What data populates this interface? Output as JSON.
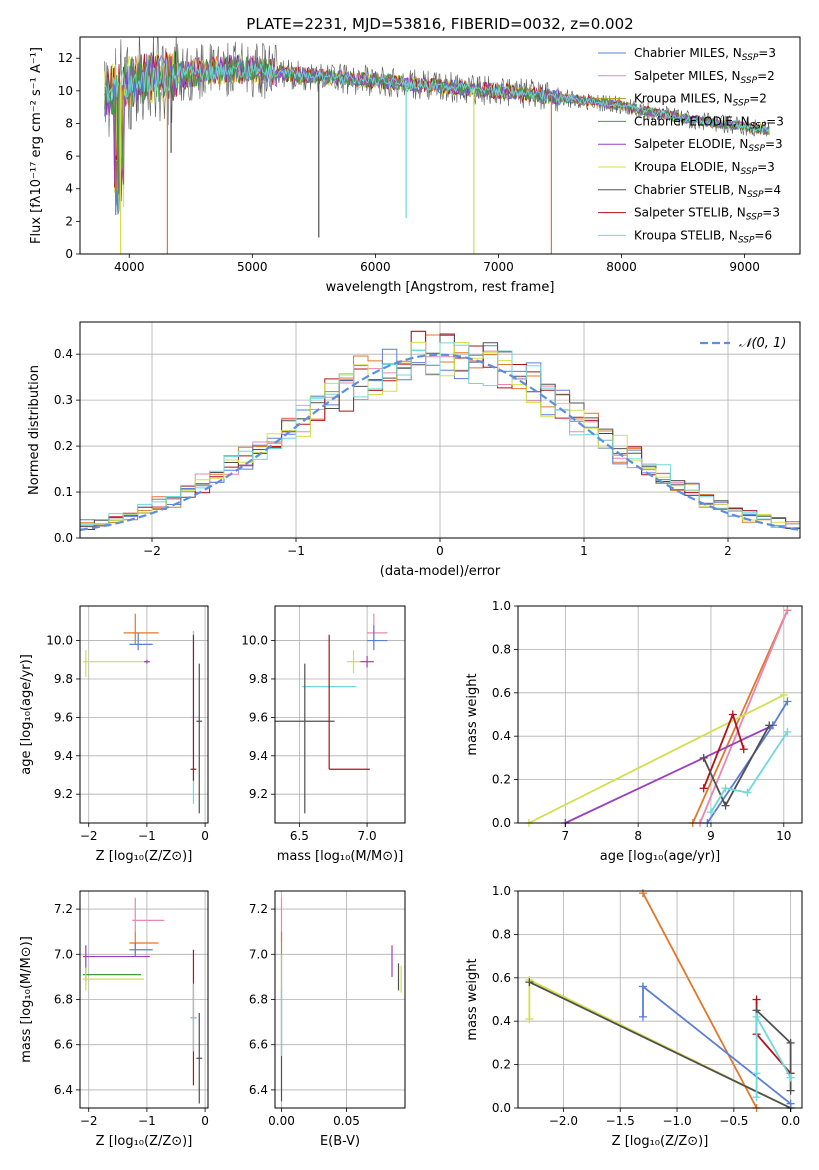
{
  "figure": {
    "title": "PLATE=2231, MJD=53816, FIBERID=0032, z=0.002"
  },
  "colors": {
    "chabrier_miles": "#5b7fd6",
    "salpeter_miles": "#ea86b3",
    "kroupa_miles": "#a6a021",
    "chabrier_elodie": "#3f9a3f",
    "salpeter_elodie": "#9a3fbf",
    "kroupa_elodie": "#d0e04a",
    "chabrier_stelib": "#505050",
    "salpeter_stelib": "#b3121b",
    "kroupa_stelib": "#6fd8d8",
    "orange": "#e0782a",
    "normal_curve": "#5b8fe0",
    "grid": "#b0b0b0"
  },
  "chart_data": [
    {
      "id": "spectrum",
      "type": "line",
      "xlabel": "wavelength [Angstrom, rest frame]",
      "ylabel": "Flux [fλ10⁻¹⁷ erg cm⁻² s⁻¹ A⁻¹]",
      "xlim": [
        3600,
        9450
      ],
      "ylim": [
        0,
        13.3
      ],
      "xticks": [
        4000,
        5000,
        6000,
        7000,
        8000,
        9000
      ],
      "yticks": [
        0,
        2,
        4,
        6,
        8,
        10,
        12
      ],
      "grid": false,
      "legend_position": "top-right",
      "legend": [
        {
          "label": "Chabrier MILES, N",
          "sub": "SSP",
          "n": "=3",
          "color": "chabrier_miles"
        },
        {
          "label": "Salpeter MILES, N",
          "sub": "SSP",
          "n": "=2",
          "color": "salpeter_miles"
        },
        {
          "label": "Kroupa MILES, N",
          "sub": "SSP",
          "n": "=2",
          "color": "kroupa_miles"
        },
        {
          "label": "Chabrier ELODIE, N",
          "sub": "SSP",
          "n": "=3",
          "color": "chabrier_elodie"
        },
        {
          "label": "Salpeter ELODIE, N",
          "sub": "SSP",
          "n": "=3",
          "color": "salpeter_elodie"
        },
        {
          "label": "Kroupa ELODIE, N",
          "sub": "SSP",
          "n": "=3",
          "color": "kroupa_elodie"
        },
        {
          "label": "Chabrier STELIB, N",
          "sub": "SSP",
          "n": "=4",
          "color": "chabrier_stelib"
        },
        {
          "label": "Salpeter STELIB, N",
          "sub": "SSP",
          "n": "=3",
          "color": "salpeter_stelib"
        },
        {
          "label": "Kroupa STELIB, N",
          "sub": "SSP",
          "n": "=6",
          "color": "kroupa_stelib"
        }
      ],
      "continuum": [
        [
          3800,
          9.6
        ],
        [
          3900,
          10.3
        ],
        [
          4000,
          10.6
        ],
        [
          4200,
          10.8
        ],
        [
          4400,
          11.0
        ],
        [
          4600,
          11.2
        ],
        [
          4800,
          11.3
        ],
        [
          5000,
          11.3
        ],
        [
          5200,
          11.1
        ],
        [
          5500,
          10.9
        ],
        [
          6000,
          10.6
        ],
        [
          6500,
          10.3
        ],
        [
          7000,
          10.0
        ],
        [
          7500,
          9.6
        ],
        [
          8000,
          9.1
        ],
        [
          8500,
          8.3
        ],
        [
          9000,
          7.8
        ],
        [
          9200,
          7.6
        ]
      ],
      "drops": [
        {
          "x": 4310,
          "y": 0,
          "color": "orange"
        },
        {
          "x": 6800,
          "y": 0,
          "color": "kroupa_elodie"
        },
        {
          "x": 7430,
          "y": 0,
          "color": "orange"
        },
        {
          "x": 3930,
          "y": 0,
          "color": "kroupa_elodie"
        },
        {
          "x": 6250,
          "y": 2.2,
          "color": "kroupa_stelib"
        },
        {
          "x": 5540,
          "y": 1.0,
          "color": "chabrier_stelib"
        },
        {
          "x": 4340,
          "y": 6.2,
          "color": "chabrier_stelib"
        }
      ]
    },
    {
      "id": "residuals",
      "type": "histogram",
      "xlabel": "(data-model)/error",
      "ylabel": "Normed distribution",
      "xlim": [
        -2.5,
        2.5
      ],
      "ylim": [
        0,
        0.47
      ],
      "xticks": [
        -2,
        -1,
        0,
        1,
        2
      ],
      "yticks": [
        0.0,
        0.1,
        0.2,
        0.3,
        0.4
      ],
      "grid": true,
      "legend_position": "top-right",
      "legend_label": "𝒩(0, 1)",
      "bin_width": 0.1
    },
    {
      "id": "age_vs_Z",
      "type": "errorbar",
      "xlabel": "Z [log₁₀(Z/Z⊙)]",
      "ylabel": "age  [log₁₀(age/yr)]",
      "xlim": [
        -2.15,
        0.05
      ],
      "ylim": [
        9.05,
        10.18
      ],
      "xticks": [
        -2,
        -1,
        0
      ],
      "yticks": [
        9.2,
        9.4,
        9.6,
        9.8,
        10.0
      ],
      "grid": true,
      "points": [
        {
          "x": -1.2,
          "y": 10.04,
          "xe": [
            0.2,
            0.4
          ],
          "ye": [
            0.06,
            0.1
          ],
          "color": "orange"
        },
        {
          "x": -1.15,
          "y": 9.98,
          "xe": [
            0.15,
            0.25
          ],
          "ye": [
            0.03,
            0.06
          ],
          "color": "chabrier_miles"
        },
        {
          "x": -2.05,
          "y": 9.89,
          "xe": [
            0.05,
            1.1
          ],
          "ye": [
            0.08,
            0.06
          ],
          "color": "kroupa_elodie"
        },
        {
          "x": -0.2,
          "y": 9.6,
          "xe": [
            0.05,
            0.1
          ],
          "ye": [
            0.45,
            0.45
          ],
          "color": "kroupa_stelib"
        },
        {
          "x": -0.1,
          "y": 9.58,
          "xe": [
            0.05,
            0.05
          ],
          "ye": [
            0.48,
            0.3
          ],
          "color": "chabrier_stelib"
        },
        {
          "x": -0.2,
          "y": 9.33,
          "xe": [
            0.05,
            0.05
          ],
          "ye": [
            0.06,
            0.7
          ],
          "color": "salpeter_stelib"
        },
        {
          "x": -1.0,
          "y": 9.89,
          "xe": [
            0.05,
            0.05
          ],
          "ye": [
            0.01,
            0.01
          ],
          "color": "salpeter_elodie"
        }
      ]
    },
    {
      "id": "age_vs_mass",
      "type": "errorbar",
      "xlabel": "mass [log₁₀(M/M⊙)]",
      "ylabel": "",
      "xlim": [
        6.32,
        7.28
      ],
      "ylim": [
        9.05,
        10.18
      ],
      "xticks": [
        6.5,
        7.0
      ],
      "yticks": [
        9.2,
        9.4,
        9.6,
        9.8,
        10.0
      ],
      "grid": true,
      "points": [
        {
          "x": 7.05,
          "y": 10.04,
          "xe": [
            0.05,
            0.1
          ],
          "ye": [
            0.05,
            0.1
          ],
          "color": "salpeter_miles"
        },
        {
          "x": 7.05,
          "y": 10.0,
          "xe": [
            0.05,
            0.1
          ],
          "ye": [
            0.05,
            0.08
          ],
          "color": "chabrier_miles"
        },
        {
          "x": 6.9,
          "y": 9.89,
          "xe": [
            0.05,
            0.05
          ],
          "ye": [
            0.06,
            0.06
          ],
          "color": "kroupa_elodie"
        },
        {
          "x": 7.0,
          "y": 9.89,
          "xe": [
            0.05,
            0.05
          ],
          "ye": [
            0.03,
            0.03
          ],
          "color": "salpeter_elodie"
        },
        {
          "x": 6.72,
          "y": 9.76,
          "xe": [
            0.2,
            0.2
          ],
          "ye": [
            0.01,
            0.01
          ],
          "color": "kroupa_stelib"
        },
        {
          "x": 6.54,
          "y": 9.58,
          "xe": [
            0.22,
            0.22
          ],
          "ye": [
            0.48,
            0.3
          ],
          "color": "chabrier_stelib"
        },
        {
          "x": 6.72,
          "y": 9.33,
          "xe": [
            0.0,
            0.3
          ],
          "ye": [
            0.0,
            0.7
          ],
          "color": "salpeter_stelib"
        }
      ]
    },
    {
      "id": "weight_vs_age",
      "type": "line",
      "xlabel": "age  [log₁₀(age/yr)]",
      "ylabel": "mass weight",
      "xlim": [
        6.35,
        10.25
      ],
      "ylim": [
        0,
        1.0
      ],
      "xticks": [
        7,
        8,
        9,
        10
      ],
      "yticks": [
        0.0,
        0.2,
        0.4,
        0.6,
        0.8,
        1.0
      ],
      "grid": true,
      "series": [
        {
          "color": "orange",
          "x": [
            8.75,
            10.05
          ],
          "y": [
            0.0,
            0.98
          ]
        },
        {
          "color": "salpeter_miles",
          "x": [
            8.85,
            10.05
          ],
          "y": [
            0.0,
            0.98
          ]
        },
        {
          "color": "kroupa_elodie",
          "x": [
            6.5,
            10.0
          ],
          "y": [
            0.0,
            0.59
          ]
        },
        {
          "color": "salpeter_elodie",
          "x": [
            7.0,
            9.85
          ],
          "y": [
            0.0,
            0.45
          ]
        },
        {
          "color": "chabrier_miles",
          "x": [
            8.95,
            9.85,
            10.05
          ],
          "y": [
            0.0,
            0.45,
            0.56
          ]
        },
        {
          "color": "salpeter_stelib",
          "x": [
            8.9,
            9.3,
            9.45
          ],
          "y": [
            0.16,
            0.5,
            0.34
          ]
        },
        {
          "color": "chabrier_stelib",
          "x": [
            8.9,
            9.2,
            9.8
          ],
          "y": [
            0.3,
            0.08,
            0.45
          ]
        },
        {
          "color": "kroupa_stelib",
          "x": [
            9.0,
            9.2,
            9.5,
            10.05
          ],
          "y": [
            0.05,
            0.16,
            0.14,
            0.42
          ]
        }
      ]
    },
    {
      "id": "mass_vs_Z",
      "type": "errorbar",
      "xlabel": "Z [log₁₀(Z/Z⊙)]",
      "ylabel": "mass [log₁₀(M/M⊙)]",
      "xlim": [
        -2.15,
        0.05
      ],
      "ylim": [
        6.32,
        7.28
      ],
      "xticks": [
        -2,
        -1,
        0
      ],
      "yticks": [
        6.4,
        6.6,
        6.8,
        7.0,
        7.2
      ],
      "grid": true,
      "points": [
        {
          "x": -1.2,
          "y": 7.15,
          "xe": [
            0.05,
            0.5
          ],
          "ye": [
            0.05,
            0.1
          ],
          "color": "salpeter_miles"
        },
        {
          "x": -1.2,
          "y": 7.05,
          "xe": [
            0.1,
            0.4
          ],
          "ye": [
            0.05,
            0.05
          ],
          "color": "orange"
        },
        {
          "x": -1.2,
          "y": 7.02,
          "xe": [
            0.1,
            0.3
          ],
          "ye": [
            0.03,
            0.03
          ],
          "color": "chabrier_miles"
        },
        {
          "x": -2.05,
          "y": 6.99,
          "xe": [
            0.05,
            1.1
          ],
          "ye": [
            0.05,
            0.05
          ],
          "color": "salpeter_elodie"
        },
        {
          "x": -2.05,
          "y": 6.91,
          "xe": [
            0.05,
            0.95
          ],
          "ye": [
            0.03,
            0.03
          ],
          "color": "chabrier_elodie"
        },
        {
          "x": -2.05,
          "y": 6.89,
          "xe": [
            0.05,
            1.0
          ],
          "ye": [
            0.05,
            0.05
          ],
          "color": "kroupa_elodie"
        },
        {
          "x": -0.2,
          "y": 6.72,
          "xe": [
            0.05,
            0.05
          ],
          "ye": [
            0.3,
            0.3
          ],
          "color": "salpeter_stelib"
        },
        {
          "x": -0.2,
          "y": 6.72,
          "xe": [
            0.05,
            0.05
          ],
          "ye": [
            0.15,
            0.15
          ],
          "color": "kroupa_stelib"
        },
        {
          "x": -0.1,
          "y": 6.54,
          "xe": [
            0.05,
            0.05
          ],
          "ye": [
            0.2,
            0.2
          ],
          "color": "chabrier_stelib"
        }
      ]
    },
    {
      "id": "mass_vs_ebv",
      "type": "errorbar",
      "xlabel": "E(B-V)",
      "ylabel": "",
      "xlim": [
        -0.005,
        0.095
      ],
      "ylim": [
        6.32,
        7.28
      ],
      "xticks": [
        0.0,
        0.05
      ],
      "yticks": [
        6.4,
        6.6,
        6.8,
        7.0,
        7.2
      ],
      "grid": true,
      "points": [
        {
          "x": 0.0,
          "y": 7.15,
          "xe": [
            0.0,
            0.0
          ],
          "ye": [
            0.1,
            0.1
          ],
          "color": "salpeter_miles"
        },
        {
          "x": 0.0,
          "y": 7.0,
          "xe": [
            0.0,
            0.0
          ],
          "ye": [
            0.15,
            0.1
          ],
          "color": "orange"
        },
        {
          "x": 0.0,
          "y": 6.6,
          "xe": [
            0.0,
            0.0
          ],
          "ye": [
            0.25,
            0.25
          ],
          "color": "chabrier_stelib"
        },
        {
          "x": 0.0,
          "y": 6.7,
          "xe": [
            0.0,
            0.0
          ],
          "ye": [
            0.15,
            0.3
          ],
          "color": "kroupa_stelib"
        },
        {
          "x": 0.085,
          "y": 6.97,
          "xe": [
            0.0,
            0.0
          ],
          "ye": [
            0.07,
            0.07
          ],
          "color": "salpeter_elodie"
        },
        {
          "x": 0.09,
          "y": 6.9,
          "xe": [
            0.0,
            0.0
          ],
          "ye": [
            0.06,
            0.06
          ],
          "color": "chabrier_stelib"
        },
        {
          "x": 0.092,
          "y": 6.89,
          "xe": [
            0.0,
            0.0
          ],
          "ye": [
            0.06,
            0.06
          ],
          "color": "kroupa_elodie"
        }
      ]
    },
    {
      "id": "weight_vs_Z",
      "type": "line",
      "xlabel": "Z [log₁₀(Z/Z⊙)]",
      "ylabel": "mass weight",
      "xlim": [
        -2.4,
        0.1
      ],
      "ylim": [
        0,
        1.0
      ],
      "xticks": [
        -2.0,
        -1.5,
        -1.0,
        -0.5,
        0.0
      ],
      "yticks": [
        0.0,
        0.2,
        0.4,
        0.6,
        0.8,
        1.0
      ],
      "grid": true,
      "series": [
        {
          "color": "orange",
          "x": [
            -1.3,
            -0.3
          ],
          "y": [
            0.99,
            0.0
          ]
        },
        {
          "color": "kroupa_elodie",
          "x": [
            -2.3,
            -2.3,
            0.0
          ],
          "y": [
            0.41,
            0.59,
            0.0
          ]
        },
        {
          "color": "chabrier_stelib",
          "x": [
            -2.3,
            0.0
          ],
          "y": [
            0.58,
            0.0
          ]
        },
        {
          "color": "chabrier_miles",
          "x": [
            -1.3,
            -1.3,
            0.0
          ],
          "y": [
            0.42,
            0.56,
            0.02
          ]
        },
        {
          "color": "salpeter_stelib",
          "x": [
            -0.3,
            -0.3,
            0.0
          ],
          "y": [
            0.5,
            0.34,
            0.16
          ]
        },
        {
          "color": "chabrier_stelib",
          "x": [
            -0.3,
            0.0,
            0.0
          ],
          "y": [
            0.45,
            0.3,
            0.08
          ]
        },
        {
          "color": "kroupa_stelib",
          "x": [
            -0.3,
            -0.3,
            -0.3,
            0.0
          ],
          "y": [
            0.05,
            0.16,
            0.42,
            0.14
          ]
        }
      ]
    }
  ]
}
